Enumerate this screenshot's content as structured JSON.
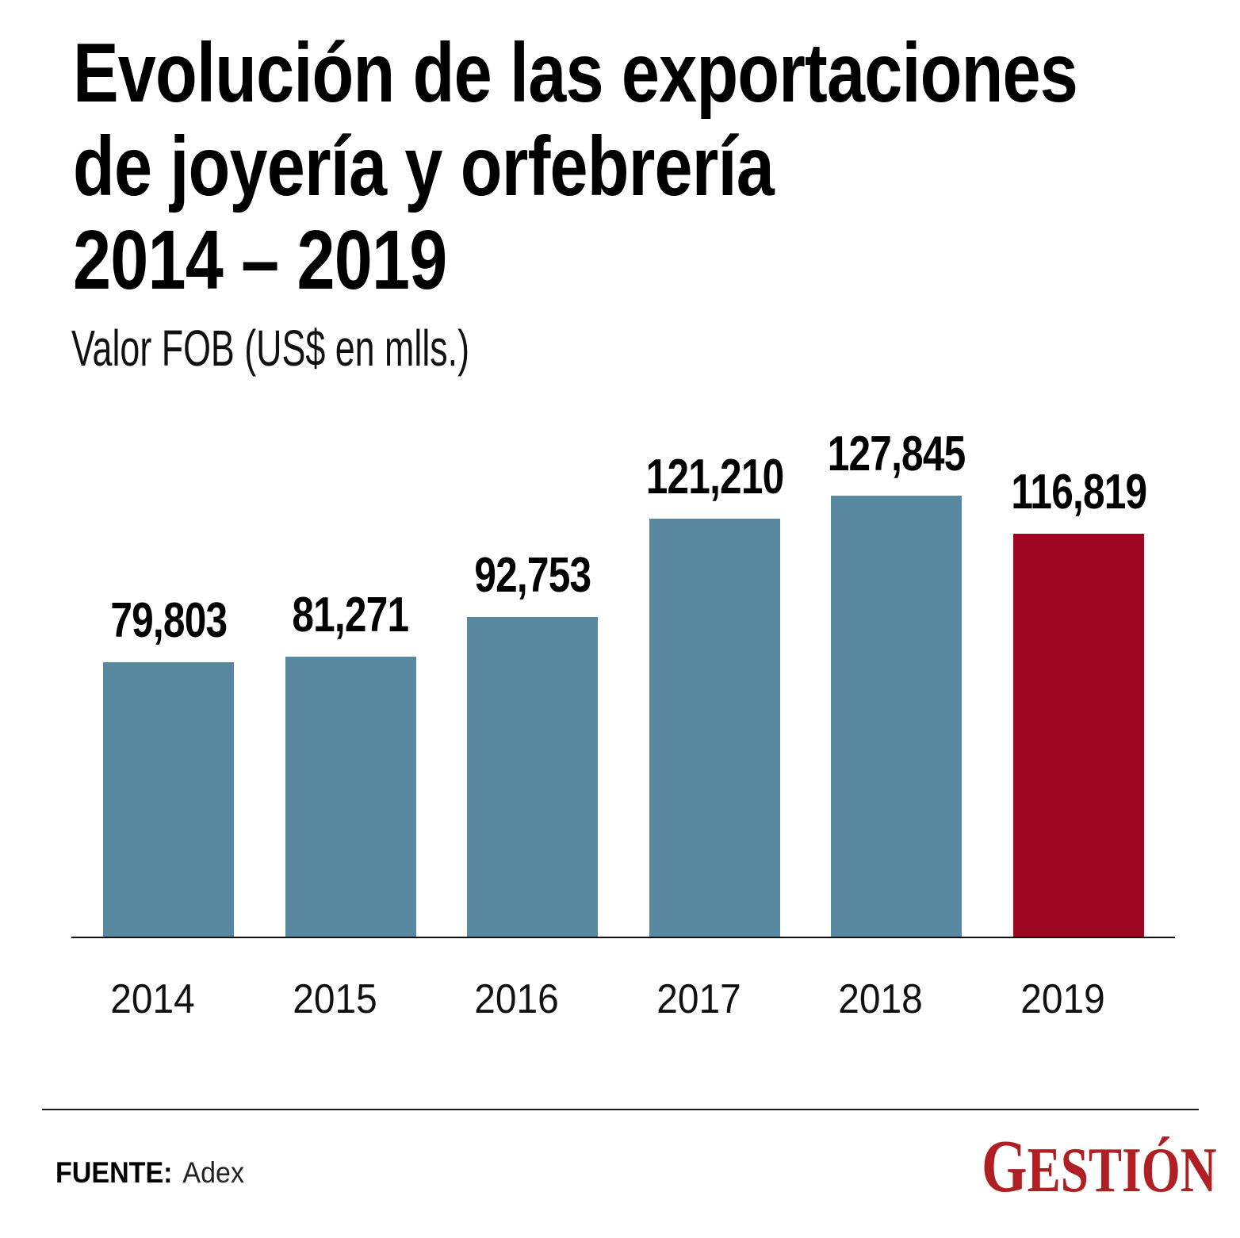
{
  "header": {
    "title_lines": [
      "Evolución de las exportaciones",
      "de joyería y orfebrería",
      "2014 – 2019"
    ],
    "subtitle": "Valor FOB (US$ en mlls.)"
  },
  "chart_data": {
    "type": "bar",
    "title": "Evolución de las exportaciones de joyería y orfebrería 2014 – 2019",
    "ylabel": "Valor FOB (US$ en mlls.)",
    "xlabel": "",
    "categories": [
      "2014",
      "2015",
      "2016",
      "2017",
      "2018",
      "2019"
    ],
    "values": [
      79803,
      81271,
      92753,
      121210,
      127845,
      116819
    ],
    "value_labels": [
      "79,803",
      "81,271",
      "92,753",
      "121,210",
      "127,845",
      "116,819"
    ],
    "ylim": [
      0,
      127845
    ],
    "grid": false,
    "legend": false,
    "bar_color": "#5988A1",
    "highlight_color": "#9E0721",
    "highlight_index": 5,
    "axis_color": "#111111"
  },
  "footer": {
    "source_label": "FUENTE:",
    "source_value": "Adex",
    "brand_first_letter": "G",
    "brand_rest": "ESTIÓN",
    "brand_color": "#B01F24"
  }
}
